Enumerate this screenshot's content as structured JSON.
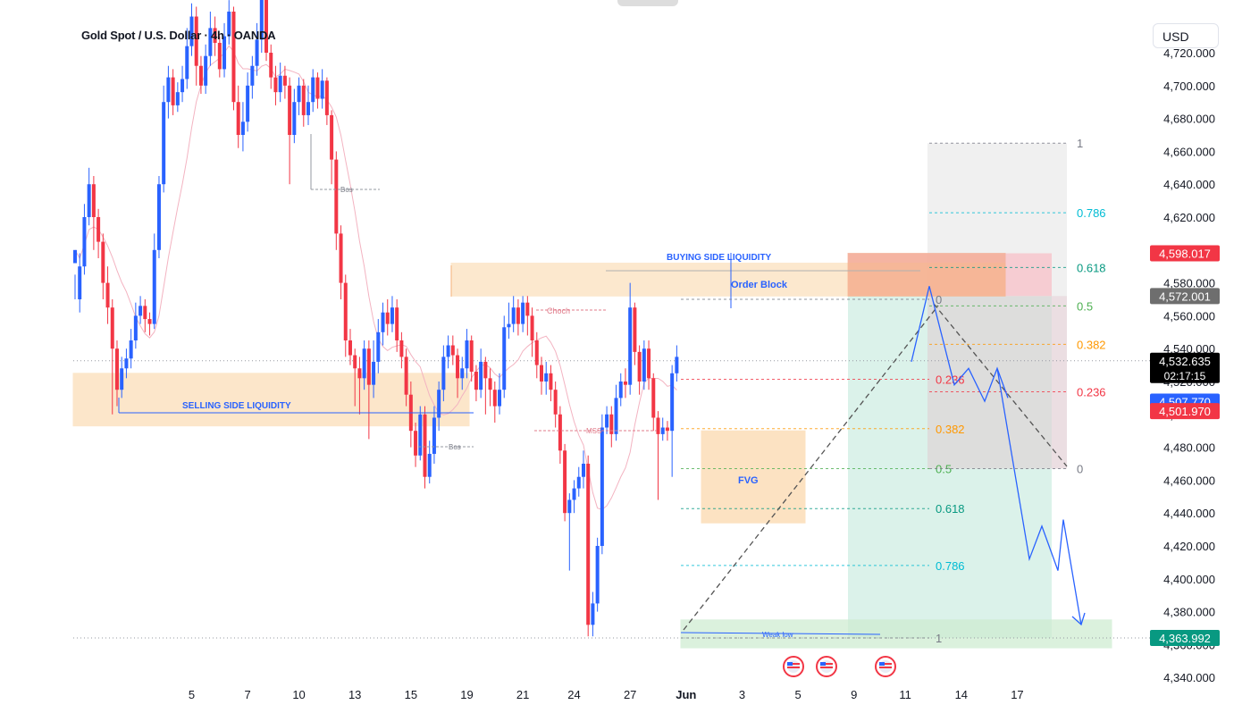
{
  "header": {
    "title": "Gold Spot / U.S. Dollar · 4h · OANDA",
    "currency_button": "USD"
  },
  "chart_data": {
    "type": "candlestick",
    "title": "Gold Spot / U.S. Dollar · 4h · OANDA",
    "symbol": "Gold Spot / U.S. Dollar",
    "timeframe": "4h",
    "source": "OANDA",
    "y_axis": {
      "range": [
        4335,
        4735
      ],
      "ticks": [
        "4,720.000",
        "4,700.000",
        "4,680.000",
        "4,660.000",
        "4,640.000",
        "4,620.000",
        "4,600.000",
        "4,580.000",
        "4,560.000",
        "4,540.000",
        "4,520.000",
        "4,500.000",
        "4,480.000",
        "4,460.000",
        "4,440.000",
        "4,420.000",
        "4,400.000",
        "4,380.000",
        "4,360.000",
        "4,340.000"
      ],
      "tick_values": [
        4720,
        4700,
        4680,
        4660,
        4640,
        4620,
        4600,
        4580,
        4560,
        4540,
        4520,
        4500,
        4480,
        4460,
        4440,
        4420,
        4400,
        4380,
        4360,
        4340
      ]
    },
    "x_axis": {
      "labels": [
        "5",
        "7",
        "10",
        "13",
        "15",
        "19",
        "21",
        "24",
        "27",
        "Jun",
        "3",
        "5",
        "9",
        "11",
        "14",
        "17"
      ],
      "label_slots": [
        25,
        37,
        48,
        60,
        72,
        84,
        96,
        107,
        119,
        131,
        143,
        155,
        167,
        178,
        190,
        202
      ]
    },
    "price_badges": [
      {
        "text": "4,598.017",
        "value": 4598.017,
        "color": "#f23645"
      },
      {
        "text": "4,572.001",
        "value": 4572.001,
        "color": "#6e6e6e"
      },
      {
        "text": "4,532.635",
        "sub": "02:17:15",
        "value": 4532.635,
        "color": "#000000"
      },
      {
        "text": "4,507.770",
        "value": 4507.77,
        "color": "#2962ff"
      },
      {
        "text": "4,501.970",
        "value": 4501.97,
        "color": "#f23645"
      },
      {
        "text": "4,363.992",
        "value": 4363.992,
        "color": "#089981"
      }
    ],
    "candles": [
      [
        4592,
        4600,
        4585,
        4570
      ],
      [
        4570,
        4590,
        4598,
        4562
      ],
      [
        4590,
        4620,
        4628,
        4585
      ],
      [
        4620,
        4640,
        4650,
        4615
      ],
      [
        4640,
        4620,
        4645,
        4600
      ],
      [
        4620,
        4605,
        4625,
        4595
      ],
      [
        4605,
        4580,
        4610,
        4570
      ],
      [
        4580,
        4565,
        4590,
        4555
      ],
      [
        4565,
        4540,
        4570,
        4500
      ],
      [
        4540,
        4515,
        4545,
        4505
      ],
      [
        4515,
        4528,
        4535,
        4510
      ],
      [
        4528,
        4534,
        4540,
        4522
      ],
      [
        4534,
        4545,
        4552,
        4528
      ],
      [
        4545,
        4560,
        4568,
        4540
      ],
      [
        4560,
        4566,
        4572,
        4555
      ],
      [
        4566,
        4558,
        4570,
        4550
      ],
      [
        4558,
        4555,
        4562,
        4548
      ],
      [
        4555,
        4600,
        4610,
        4552
      ],
      [
        4600,
        4640,
        4645,
        4595
      ],
      [
        4640,
        4690,
        4700,
        4635
      ],
      [
        4690,
        4705,
        4712,
        4680
      ],
      [
        4705,
        4688,
        4710,
        4682
      ],
      [
        4688,
        4696,
        4702,
        4684
      ],
      [
        4696,
        4704,
        4712,
        4690
      ],
      [
        4704,
        4724,
        4735,
        4698
      ],
      [
        4724,
        4742,
        4750,
        4718
      ],
      [
        4742,
        4712,
        4748,
        4700
      ],
      [
        4712,
        4700,
        4718,
        4695
      ],
      [
        4700,
        4718,
        4725,
        4695
      ],
      [
        4718,
        4735,
        4745,
        4712
      ],
      [
        4735,
        4726,
        4742,
        4718
      ],
      [
        4726,
        4710,
        4730,
        4705
      ],
      [
        4710,
        4730,
        4738,
        4705
      ],
      [
        4730,
        4745,
        4752,
        4725
      ],
      [
        4745,
        4690,
        4748,
        4685
      ],
      [
        4690,
        4670,
        4700,
        4662
      ],
      [
        4670,
        4678,
        4690,
        4660
      ],
      [
        4678,
        4700,
        4708,
        4672
      ],
      [
        4700,
        4712,
        4718,
        4692
      ],
      [
        4712,
        4728,
        4738,
        4706
      ],
      [
        4728,
        4755,
        4760,
        4720
      ],
      [
        4755,
        4720,
        4758,
        4715
      ],
      [
        4720,
        4705,
        4725,
        4698
      ],
      [
        4705,
        4696,
        4712,
        4688
      ],
      [
        4696,
        4706,
        4714,
        4690
      ],
      [
        4706,
        4700,
        4712,
        4692
      ],
      [
        4700,
        4670,
        4705,
        4640
      ],
      [
        4670,
        4690,
        4698,
        4665
      ],
      [
        4690,
        4700,
        4705,
        4682
      ],
      [
        4700,
        4682,
        4704,
        4675
      ],
      [
        4682,
        4690,
        4700,
        4676
      ],
      [
        4690,
        4705,
        4710,
        4684
      ],
      [
        4705,
        4692,
        4708,
        4686
      ],
      [
        4692,
        4703,
        4710,
        4686
      ],
      [
        4703,
        4682,
        4705,
        4676
      ],
      [
        4682,
        4655,
        4685,
        4640
      ],
      [
        4655,
        4610,
        4660,
        4600
      ],
      [
        4610,
        4580,
        4615,
        4570
      ],
      [
        4580,
        4545,
        4585,
        4535
      ],
      [
        4545,
        4536,
        4552,
        4530
      ],
      [
        4536,
        4528,
        4540,
        4505
      ],
      [
        4528,
        4522,
        4535,
        4500
      ],
      [
        4522,
        4540,
        4545,
        4515
      ],
      [
        4540,
        4518,
        4545,
        4485
      ],
      [
        4518,
        4532,
        4545,
        4510
      ],
      [
        4532,
        4550,
        4558,
        4525
      ],
      [
        4550,
        4562,
        4568,
        4542
      ],
      [
        4562,
        4555,
        4570,
        4548
      ],
      [
        4555,
        4565,
        4572,
        4550
      ],
      [
        4565,
        4545,
        4570,
        4538
      ],
      [
        4545,
        4535,
        4550,
        4528
      ],
      [
        4535,
        4512,
        4540,
        4505
      ],
      [
        4512,
        4490,
        4520,
        4480
      ],
      [
        4490,
        4475,
        4495,
        4468
      ],
      [
        4475,
        4500,
        4505,
        4472
      ],
      [
        4500,
        4462,
        4505,
        4455
      ],
      [
        4462,
        4476,
        4484,
        4458
      ],
      [
        4476,
        4498,
        4505,
        4470
      ],
      [
        4498,
        4515,
        4520,
        4490
      ],
      [
        4515,
        4535,
        4542,
        4508
      ],
      [
        4535,
        4542,
        4548,
        4528
      ],
      [
        4542,
        4536,
        4548,
        4530
      ],
      [
        4536,
        4522,
        4540,
        4510
      ],
      [
        4522,
        4528,
        4535,
        4515
      ],
      [
        4528,
        4545,
        4552,
        4522
      ],
      [
        4545,
        4526,
        4548,
        4520
      ],
      [
        4526,
        4515,
        4530,
        4508
      ],
      [
        4515,
        4532,
        4540,
        4510
      ],
      [
        4532,
        4522,
        4535,
        4500
      ],
      [
        4522,
        4515,
        4528,
        4505
      ],
      [
        4515,
        4505,
        4520,
        4495
      ],
      [
        4505,
        4515,
        4525,
        4500
      ],
      [
        4515,
        4553,
        4560,
        4510
      ],
      [
        4553,
        4555,
        4568,
        4546
      ],
      [
        4555,
        4565,
        4572,
        4550
      ],
      [
        4565,
        4555,
        4570,
        4548
      ],
      [
        4555,
        4568,
        4572,
        4550
      ],
      [
        4568,
        4560,
        4572,
        4548
      ],
      [
        4560,
        4545,
        4565,
        4535
      ],
      [
        4545,
        4530,
        4550,
        4522
      ],
      [
        4530,
        4520,
        4535,
        4512
      ],
      [
        4520,
        4525,
        4532,
        4512
      ],
      [
        4525,
        4515,
        4530,
        4508
      ],
      [
        4515,
        4500,
        4520,
        4492
      ],
      [
        4500,
        4478,
        4505,
        4470
      ],
      [
        4478,
        4440,
        4482,
        4435
      ],
      [
        4440,
        4448,
        4452,
        4405
      ],
      [
        4448,
        4455,
        4460,
        4440
      ],
      [
        4455,
        4462,
        4468,
        4450
      ],
      [
        4462,
        4470,
        4478,
        4455
      ],
      [
        4470,
        4372,
        4475,
        4365
      ],
      [
        4372,
        4385,
        4392,
        4365
      ],
      [
        4385,
        4420,
        4425,
        4380
      ],
      [
        4420,
        4492,
        4500,
        4415
      ],
      [
        4492,
        4500,
        4505,
        4488
      ],
      [
        4500,
        4488,
        4505,
        4480
      ],
      [
        4488,
        4510,
        4518,
        4484
      ],
      [
        4510,
        4520,
        4525,
        4505
      ],
      [
        4520,
        4518,
        4528,
        4510
      ],
      [
        4518,
        4565,
        4580,
        4512
      ],
      [
        4565,
        4538,
        4568,
        4530
      ],
      [
        4538,
        4520,
        4542,
        4512
      ],
      [
        4520,
        4540,
        4545,
        4515
      ],
      [
        4540,
        4522,
        4545,
        4515
      ],
      [
        4522,
        4498,
        4525,
        4490
      ],
      [
        4498,
        4488,
        4502,
        4448
      ],
      [
        4488,
        4492,
        4498,
        4484
      ],
      [
        4492,
        4490,
        4496,
        4484
      ],
      [
        4490,
        4525,
        4530,
        4462
      ],
      [
        4525,
        4535,
        4542,
        4520
      ]
    ],
    "zones": [
      {
        "name": "SELLING SIDE LIQUIDITY",
        "price_top": 4525,
        "price_bottom": 4493
      },
      {
        "name": "BUYING SIDE LIQUIDITY",
        "price_top": 4592,
        "price_bottom": 4572
      },
      {
        "name": "Order Block",
        "price_top": 4598,
        "price_bottom": 4572
      },
      {
        "name": "FVG",
        "price_top": 4490,
        "price_bottom": 4434
      },
      {
        "name": "Weak low",
        "price_top": 4375,
        "price_bottom": 4358
      }
    ],
    "annotations": [
      "BUYING SIDE LIQUIDITY",
      "Order Block",
      "SELLING SIDE LIQUIDITY",
      "FVG",
      "Choch",
      "MSS",
      "Bos",
      "Bos",
      "Weak low"
    ],
    "fib_retracement_main": {
      "level_labels": [
        "0",
        "0.236",
        "0.382",
        "0.5",
        "0.618",
        "0.786",
        "1"
      ],
      "levels": [
        0,
        0.236,
        0.382,
        0.5,
        0.618,
        0.786,
        1
      ],
      "price_0": 4570,
      "price_1": 4364
    },
    "fib_retracement_right": {
      "level_labels": [
        "1",
        "0.786",
        "0.618",
        "0.5",
        "0.382",
        "0.236",
        "0"
      ],
      "levels": [
        1,
        0.786,
        0.618,
        0.5,
        0.382,
        0.236,
        0
      ],
      "price_1": 4665,
      "price_0": 4467
    },
    "position_tool": {
      "type": "short",
      "entry": 4572.001,
      "stop": 4598.017,
      "target": 4363.992
    },
    "projection_path": [
      [
        4532,
        0
      ],
      [
        4578,
        0
      ],
      [
        4518,
        0
      ],
      [
        4528,
        0
      ],
      [
        4508,
        0
      ],
      [
        4528,
        0
      ],
      [
        4510,
        0
      ],
      [
        4528,
        0
      ],
      [
        4412,
        0
      ],
      [
        4432,
        0
      ],
      [
        4405,
        0
      ],
      [
        4436,
        0
      ],
      [
        4372,
        0
      ]
    ]
  }
}
